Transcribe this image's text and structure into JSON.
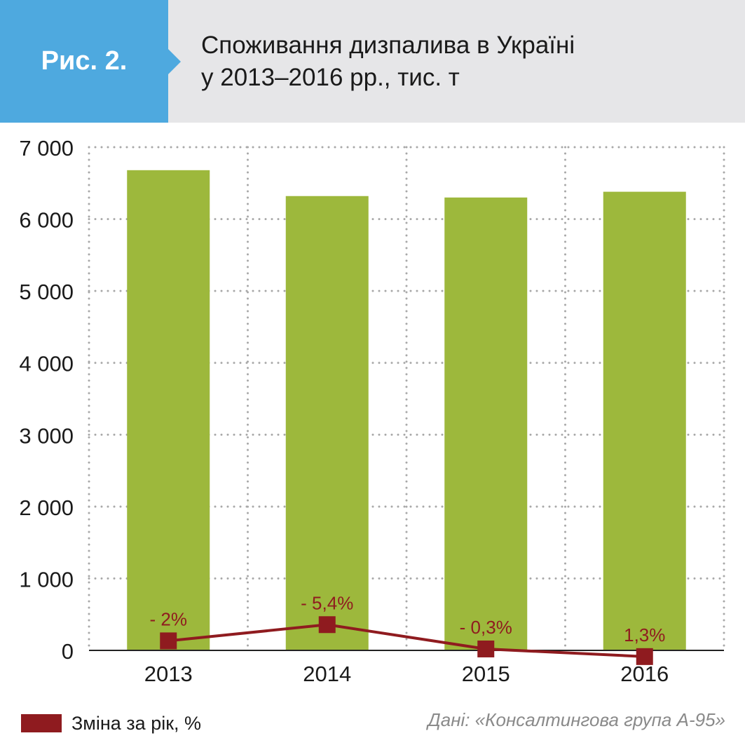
{
  "figure_label": "Рис. 2.",
  "title_lines": [
    "Споживання дизпалива в Україні",
    "у 2013–2016 рр., тис. т"
  ],
  "legend": {
    "label": "Зміна за рік, %"
  },
  "source": "Дані: «Консалтингова група А-95»",
  "colors": {
    "bar": "#9db83c",
    "line": "#8f1b1f",
    "badge": "#4ea9df",
    "header": "#e6e6e8",
    "grid": "#a8a8a8"
  },
  "chart_data": {
    "type": "bar",
    "categories": [
      "2013",
      "2014",
      "2015",
      "2016"
    ],
    "values": [
      6680,
      6320,
      6300,
      6380
    ],
    "ylim": [
      0,
      7000
    ],
    "yticks": [
      0,
      1000,
      2000,
      3000,
      4000,
      5000,
      6000,
      7000
    ],
    "ytick_labels": [
      "0",
      "1 000",
      "2 000",
      "3 000",
      "4 000",
      "5 000",
      "6 000",
      "7 000"
    ],
    "grid": true,
    "legend_position": "bottom-left",
    "line_series": {
      "name": "Зміна за рік, %",
      "values": [
        -2,
        -5.4,
        -0.3,
        1.3
      ],
      "labels": [
        "- 2%",
        "- 5,4%",
        "- 0,3%",
        "1,3%"
      ],
      "scale": "secondary axis, not printed; larger decline drawn higher"
    }
  }
}
